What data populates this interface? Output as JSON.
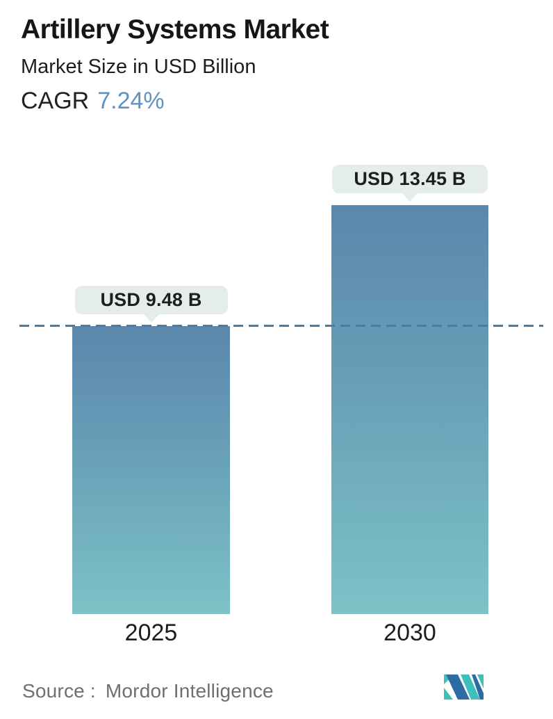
{
  "header": {
    "title": "Artillery Systems Market",
    "subtitle": "Market Size in USD Billion",
    "cagr_label": "CAGR",
    "cagr_value": "7.24%"
  },
  "chart_data": {
    "type": "bar",
    "title": "Artillery Systems Market",
    "ylabel": "Market Size in USD Billion",
    "cagr_percent": 7.24,
    "categories": [
      "2025",
      "2030"
    ],
    "values": [
      9.48,
      13.45
    ],
    "bars": [
      {
        "category": "2025",
        "value": 9.48,
        "label": "USD 9.48 B"
      },
      {
        "category": "2030",
        "value": 13.45,
        "label": "USD 13.45 B"
      }
    ],
    "reference_line": {
      "value": 9.48,
      "style": "dashed"
    },
    "grid": false,
    "legend_position": "none",
    "bar_gradient_top": "#5b87ac",
    "bar_gradient_bottom": "#7ec2c7"
  },
  "footer": {
    "source_label": "Source :",
    "source_value": "Mordor Intelligence",
    "logo_name": "mordor-intelligence-logo"
  },
  "colors": {
    "accent_blue": "#6191bf",
    "dashed_line": "#4a7ba6",
    "pill_background": "#e4edec",
    "text_dark": "#1b1b1b",
    "text_gray": "#6f6f6f",
    "logo_blue": "#2f6ba3",
    "logo_teal": "#3fbfb9"
  }
}
